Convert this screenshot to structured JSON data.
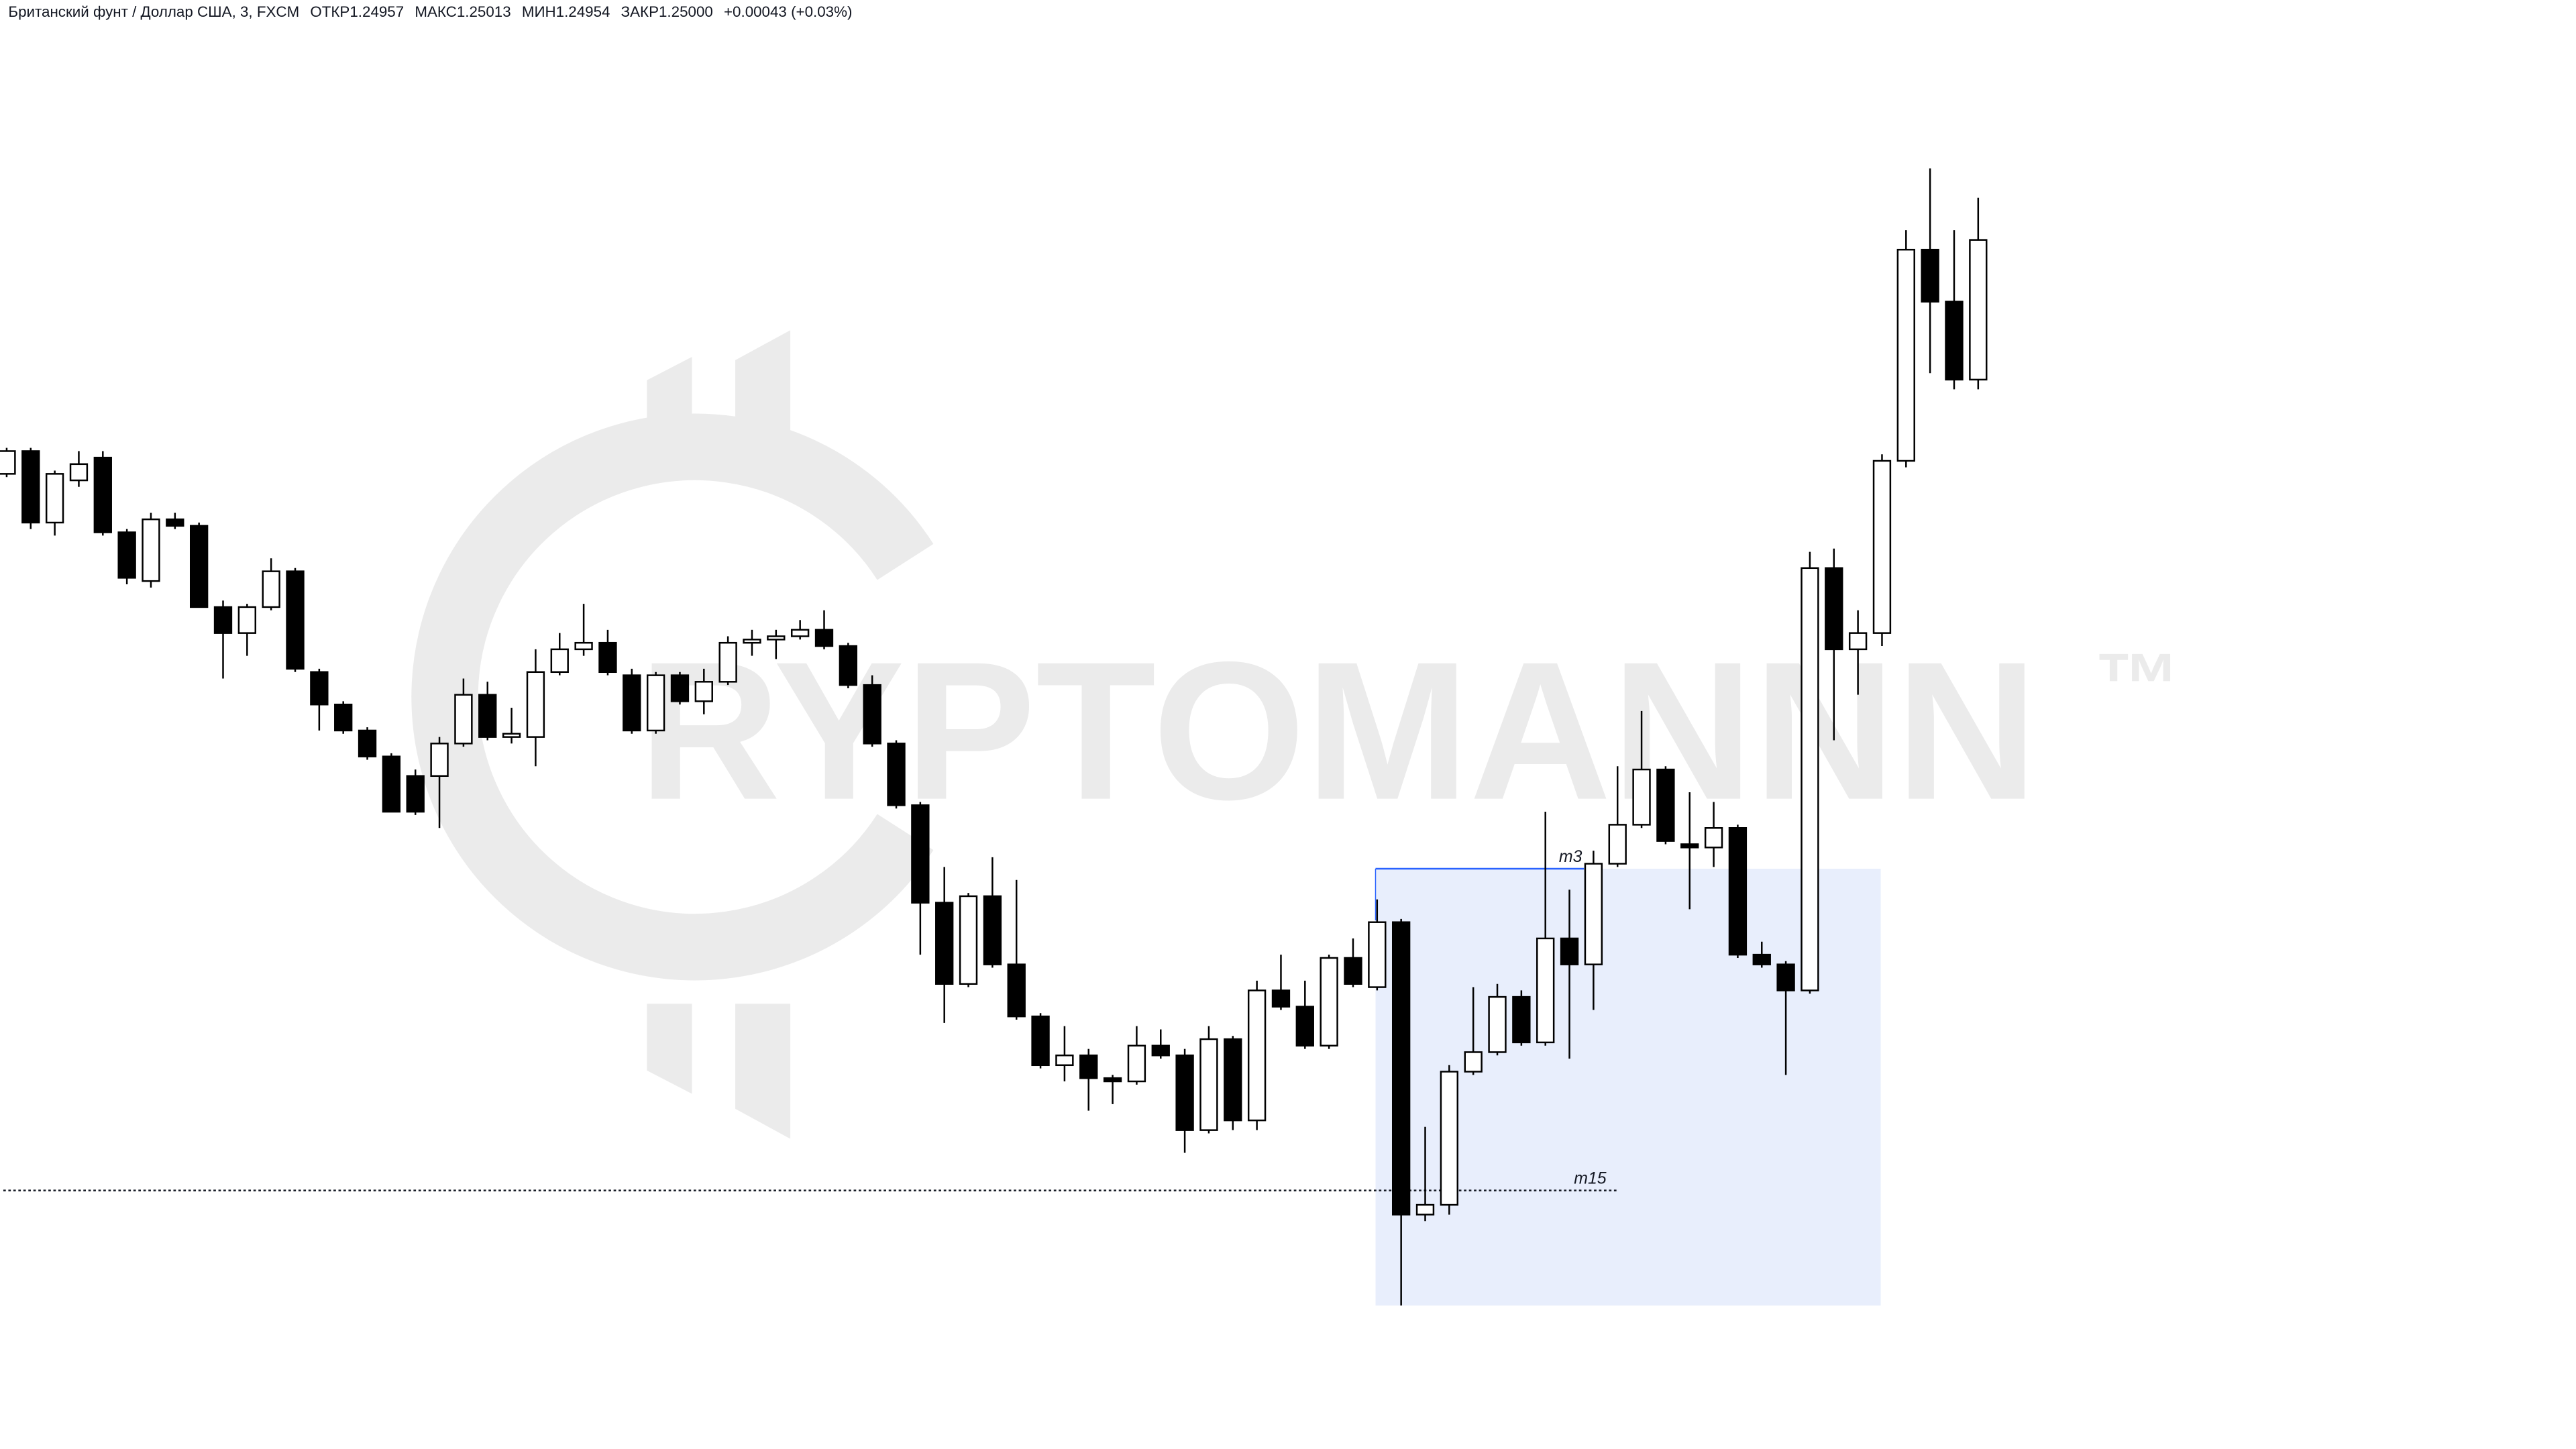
{
  "header": {
    "symbol": "Британский фунт / Доллар США, 3, FXCM",
    "fields": [
      {
        "label": "ОТКР",
        "value": "1.24957"
      },
      {
        "label": "МАКС",
        "value": "1.25013"
      },
      {
        "label": "МИН",
        "value": "1.24954"
      },
      {
        "label": "ЗАКР",
        "value": "1.25000"
      }
    ],
    "change": "+0.00043 (+0.03%)"
  },
  "watermark": {
    "text": "RYPTOMANNN",
    "mark": "™"
  },
  "annotations": {
    "zone_label": "m3",
    "level_label": "m15"
  },
  "chart_data": {
    "type": "candlestick",
    "up_color": "#ffffff",
    "down_color": "#000000",
    "open": [
      1.24928,
      1.24935,
      1.24913,
      1.24926,
      1.24933,
      1.2491,
      1.24895,
      1.24914,
      1.24912,
      1.24887,
      1.24879,
      1.24887,
      1.24898,
      1.24867,
      1.24857,
      1.24849,
      1.24841,
      1.24835,
      1.24835,
      1.24845,
      1.2486,
      1.24847,
      1.24847,
      1.24867,
      1.24874,
      1.24876,
      1.24866,
      1.24849,
      1.24866,
      1.24858,
      1.24864,
      1.24876,
      1.24877,
      1.24878,
      1.2488,
      1.24875,
      1.24863,
      1.24845,
      1.24826,
      1.24796,
      1.24771,
      1.24798,
      1.24777,
      1.24761,
      1.24746,
      1.24749,
      1.24742,
      1.24741,
      1.24752,
      1.24749,
      1.24726,
      1.24754,
      1.24729,
      1.24769,
      1.24764,
      1.24752,
      1.24779,
      1.2477,
      1.2479,
      1.247,
      1.24703,
      1.24744,
      1.2475,
      1.24767,
      1.24753,
      1.24785,
      1.24777,
      1.24808,
      1.2482,
      1.24837,
      1.24814,
      1.24813,
      1.24819,
      1.2478,
      1.24777,
      1.24769,
      1.24899,
      1.24874,
      1.24879,
      1.24932,
      1.24997,
      1.24981,
      1.24957
    ],
    "high": [
      1.24936,
      1.24936,
      1.24929,
      1.24935,
      1.24935,
      1.24911,
      1.24916,
      1.24916,
      1.24913,
      1.24889,
      1.24888,
      1.24902,
      1.24899,
      1.24868,
      1.24858,
      1.2485,
      1.24842,
      1.24837,
      1.24847,
      1.24865,
      1.24864,
      1.24856,
      1.24874,
      1.24879,
      1.24888,
      1.2488,
      1.24868,
      1.24867,
      1.24867,
      1.24868,
      1.24878,
      1.2488,
      1.2488,
      1.24883,
      1.24886,
      1.24876,
      1.24866,
      1.24846,
      1.24827,
      1.24807,
      1.24799,
      1.2481,
      1.24803,
      1.24762,
      1.24758,
      1.24751,
      1.24743,
      1.24758,
      1.24757,
      1.24751,
      1.24758,
      1.24755,
      1.24772,
      1.2478,
      1.24772,
      1.2478,
      1.24785,
      1.24797,
      1.24791,
      1.24727,
      1.24746,
      1.2477,
      1.24771,
      1.24769,
      1.24824,
      1.248,
      1.24812,
      1.24838,
      1.24855,
      1.24838,
      1.2483,
      1.24827,
      1.2482,
      1.24784,
      1.24778,
      1.24904,
      1.24905,
      1.24886,
      1.24934,
      1.25003,
      1.25022,
      1.25003,
      1.25013
    ],
    "low": [
      1.24927,
      1.24911,
      1.24909,
      1.24924,
      1.24909,
      1.24894,
      1.24893,
      1.24911,
      1.24887,
      1.24865,
      1.24872,
      1.24886,
      1.24867,
      1.24849,
      1.24848,
      1.2484,
      1.24824,
      1.24823,
      1.24819,
      1.24844,
      1.24846,
      1.24845,
      1.24838,
      1.24866,
      1.24872,
      1.24866,
      1.24848,
      1.24848,
      1.24857,
      1.24854,
      1.24863,
      1.24872,
      1.24871,
      1.24877,
      1.24874,
      1.24862,
      1.24844,
      1.24825,
      1.2478,
      1.24759,
      1.2477,
      1.24776,
      1.2476,
      1.24745,
      1.24741,
      1.24732,
      1.24734,
      1.2474,
      1.24748,
      1.24719,
      1.24725,
      1.24726,
      1.24726,
      1.24763,
      1.24751,
      1.24751,
      1.2477,
      1.24769,
      1.24672,
      1.24698,
      1.247,
      1.24743,
      1.24749,
      1.24752,
      1.24752,
      1.24748,
      1.24763,
      1.24807,
      1.24819,
      1.24814,
      1.24794,
      1.24807,
      1.24779,
      1.24776,
      1.24743,
      1.24768,
      1.24846,
      1.2486,
      1.24875,
      1.2493,
      1.24959,
      1.24954,
      1.24954
    ],
    "close": [
      1.24935,
      1.24913,
      1.24928,
      1.24931,
      1.2491,
      1.24896,
      1.24914,
      1.24912,
      1.24887,
      1.24879,
      1.24887,
      1.24898,
      1.24868,
      1.24857,
      1.24849,
      1.24841,
      1.24824,
      1.24824,
      1.24845,
      1.2486,
      1.24847,
      1.24848,
      1.24867,
      1.24874,
      1.24876,
      1.24867,
      1.24849,
      1.24866,
      1.24858,
      1.24864,
      1.24876,
      1.24877,
      1.24878,
      1.2488,
      1.24875,
      1.24863,
      1.24845,
      1.24826,
      1.24796,
      1.24771,
      1.24798,
      1.24777,
      1.24761,
      1.24746,
      1.24749,
      1.24742,
      1.24741,
      1.24752,
      1.24749,
      1.24726,
      1.24754,
      1.24729,
      1.24769,
      1.24764,
      1.24752,
      1.24779,
      1.24771,
      1.2479,
      1.247,
      1.24703,
      1.24744,
      1.2475,
      1.24767,
      1.24753,
      1.24785,
      1.24777,
      1.24808,
      1.2482,
      1.24837,
      1.24815,
      1.24813,
      1.24819,
      1.2478,
      1.24777,
      1.24769,
      1.24899,
      1.24874,
      1.24879,
      1.24932,
      1.24997,
      1.24981,
      1.24957,
      1.25
    ]
  }
}
